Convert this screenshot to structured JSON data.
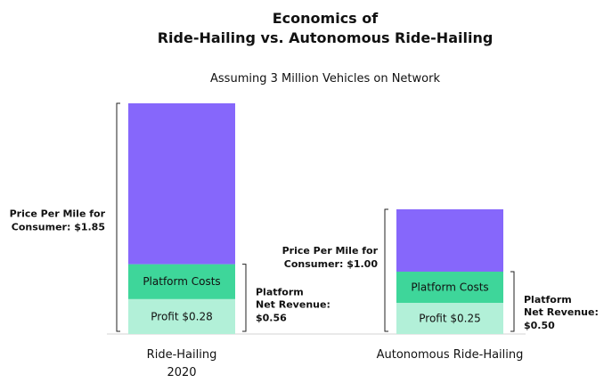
{
  "chart_data": {
    "type": "bar",
    "stacked": true,
    "title_line1": "Economics of",
    "title_line2": "Ride-Hailing vs. Autonomous Ride-Hailing",
    "subtitle": "Assuming 3 Million Vehicles on Network",
    "xlabel": "",
    "ylabel": "",
    "grid": false,
    "categories": [
      {
        "line1": "Ride-Hailing",
        "line2": "2020"
      },
      {
        "line1": "Autonomous Ride-Hailing",
        "line2": ""
      }
    ],
    "series": [
      {
        "key": "profit",
        "values": [
          0.28,
          0.25
        ],
        "color": "#b2f0d8"
      },
      {
        "key": "platform_costs",
        "values": [
          0.28,
          0.25
        ],
        "color": "#3ed69a"
      },
      {
        "key": "remainder",
        "values": [
          1.29,
          0.5
        ],
        "color": "#8667fb"
      }
    ],
    "totals": [
      1.85,
      1.0
    ],
    "segment_labels": {
      "profit": [
        "Profit $0.28",
        "Profit $0.25"
      ],
      "platform_costs": [
        "Platform Costs",
        "Platform Costs"
      ]
    },
    "annotations": {
      "price": [
        {
          "line1": "Price Per Mile for",
          "line2": "Consumer: $1.85"
        },
        {
          "line1": "Price Per Mile for",
          "line2": "Consumer: $1.00"
        }
      ],
      "net_revenue": [
        {
          "line1": "Platform",
          "line2": "Net Revenue:",
          "line3": "$0.56",
          "value": 0.56
        },
        {
          "line1": "Platform",
          "line2": "Net Revenue:",
          "line3": "$0.50",
          "value": 0.5
        }
      ]
    }
  }
}
